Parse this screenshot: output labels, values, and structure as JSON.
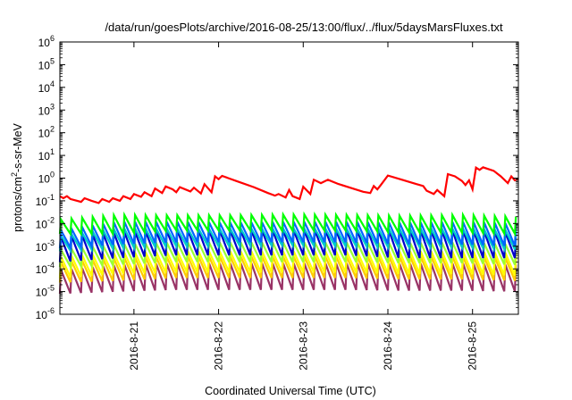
{
  "chart_data": {
    "type": "line",
    "title": "/data/run/goesPlots/archive/2016-08-25/13:00/flux/../flux/5daysMarsFluxes.txt",
    "xlabel": "Coordinated Universal Time (UTC)",
    "ylabel_prefix": "protons/cm",
    "ylabel_sup": "2",
    "ylabel_suffix": "-s-sr-MeV",
    "y_scale": "log",
    "ylim": [
      1e-06,
      1000000
    ],
    "y_ticks": [
      {
        "value": 1e-06,
        "base": "10",
        "exp": "-6"
      },
      {
        "value": 1e-05,
        "base": "10",
        "exp": "-5"
      },
      {
        "value": 0.0001,
        "base": "10",
        "exp": "-4"
      },
      {
        "value": 0.001,
        "base": "10",
        "exp": "-3"
      },
      {
        "value": 0.01,
        "base": "10",
        "exp": "-2"
      },
      {
        "value": 0.1,
        "base": "10",
        "exp": "-1"
      },
      {
        "value": 1,
        "base": "10",
        "exp": "0"
      },
      {
        "value": 10,
        "base": "10",
        "exp": "1"
      },
      {
        "value": 100,
        "base": "10",
        "exp": "2"
      },
      {
        "value": 1000,
        "base": "10",
        "exp": "3"
      },
      {
        "value": 10000,
        "base": "10",
        "exp": "4"
      },
      {
        "value": 100000,
        "base": "10",
        "exp": "5"
      },
      {
        "value": 1000000,
        "base": "10",
        "exp": "6"
      }
    ],
    "xlim": [
      "2016-08-20T03:00",
      "2016-08-25T13:00"
    ],
    "x_ticks": [
      {
        "label": "2016-8-21",
        "value": "2016-08-21T00:00"
      },
      {
        "label": "2016-8-22",
        "value": "2016-08-22T00:00"
      },
      {
        "label": "2016-8-23",
        "value": "2016-08-23T00:00"
      },
      {
        "label": "2016-8-24",
        "value": "2016-08-24T00:00"
      },
      {
        "label": "2016-8-25",
        "value": "2016-08-25T00:00"
      }
    ],
    "grid": false,
    "legend": "none",
    "series_pattern": "sawtooth",
    "series": [
      {
        "color": "#ff0000",
        "points": [
          [
            "2016-08-20T03:00",
            0.16
          ],
          [
            "2016-08-20T04:00",
            0.13
          ],
          [
            "2016-08-20T05:00",
            0.16
          ],
          [
            "2016-08-20T06:00",
            0.12
          ],
          [
            "2016-08-20T09:00",
            0.09
          ],
          [
            "2016-08-20T10:00",
            0.13
          ],
          [
            "2016-08-20T12:00",
            0.1
          ],
          [
            "2016-08-20T14:00",
            0.08
          ],
          [
            "2016-08-20T15:00",
            0.12
          ],
          [
            "2016-08-20T17:00",
            0.09
          ],
          [
            "2016-08-20T18:00",
            0.13
          ],
          [
            "2016-08-20T20:00",
            0.1
          ],
          [
            "2016-08-20T21:00",
            0.16
          ],
          [
            "2016-08-20T23:00",
            0.12
          ],
          [
            "2016-08-21T00:00",
            0.2
          ],
          [
            "2016-08-21T02:00",
            0.15
          ],
          [
            "2016-08-21T03:00",
            0.24
          ],
          [
            "2016-08-21T05:00",
            0.16
          ],
          [
            "2016-08-21T06:00",
            0.35
          ],
          [
            "2016-08-21T08:00",
            0.22
          ],
          [
            "2016-08-21T09:00",
            0.43
          ],
          [
            "2016-08-21T11:00",
            0.32
          ],
          [
            "2016-08-21T12:00",
            0.24
          ],
          [
            "2016-08-21T13:00",
            0.4
          ],
          [
            "2016-08-21T16:00",
            0.26
          ],
          [
            "2016-08-21T17:00",
            0.38
          ],
          [
            "2016-08-21T19:00",
            0.21
          ],
          [
            "2016-08-21T20:00",
            0.54
          ],
          [
            "2016-08-21T22:00",
            0.24
          ],
          [
            "2016-08-21T23:00",
            1.2
          ],
          [
            "2016-08-22T00:00",
            0.9
          ],
          [
            "2016-08-22T01:00",
            1.25
          ],
          [
            "2016-08-22T05:00",
            0.75
          ],
          [
            "2016-08-22T10:00",
            0.4
          ],
          [
            "2016-08-22T14:00",
            0.22
          ],
          [
            "2016-08-22T16:00",
            0.17
          ],
          [
            "2016-08-22T17:00",
            0.2
          ],
          [
            "2016-08-22T19:00",
            0.14
          ],
          [
            "2016-08-22T20:00",
            0.3
          ],
          [
            "2016-08-22T21:00",
            0.16
          ],
          [
            "2016-08-22T23:00",
            0.12
          ],
          [
            "2016-08-23T00:00",
            0.42
          ],
          [
            "2016-08-23T02:00",
            0.2
          ],
          [
            "2016-08-23T03:00",
            0.85
          ],
          [
            "2016-08-23T05:00",
            0.6
          ],
          [
            "2016-08-23T07:00",
            0.85
          ],
          [
            "2016-08-23T10:00",
            0.55
          ],
          [
            "2016-08-23T14:00",
            0.35
          ],
          [
            "2016-08-23T17:00",
            0.25
          ],
          [
            "2016-08-23T19:00",
            0.22
          ],
          [
            "2016-08-23T20:00",
            0.45
          ],
          [
            "2016-08-23T21:00",
            0.32
          ],
          [
            "2016-08-23T22:00",
            0.5
          ],
          [
            "2016-08-24T00:00",
            1.3
          ],
          [
            "2016-08-24T04:00",
            0.85
          ],
          [
            "2016-08-24T08:00",
            0.55
          ],
          [
            "2016-08-24T10:00",
            0.45
          ],
          [
            "2016-08-24T11:00",
            0.28
          ],
          [
            "2016-08-24T13:00",
            0.2
          ],
          [
            "2016-08-24T14:00",
            0.3
          ],
          [
            "2016-08-24T16:00",
            0.16
          ],
          [
            "2016-08-24T17:00",
            1.5
          ],
          [
            "2016-08-24T19:00",
            1.2
          ],
          [
            "2016-08-24T21:00",
            0.75
          ],
          [
            "2016-08-24T22:00",
            0.5
          ],
          [
            "2016-08-24T23:00",
            0.8
          ],
          [
            "2016-08-25T00:00",
            0.32
          ],
          [
            "2016-08-25T01:00",
            2.9
          ],
          [
            "2016-08-25T02:00",
            2.3
          ],
          [
            "2016-08-25T03:00",
            3.0
          ],
          [
            "2016-08-25T06:00",
            2.1
          ],
          [
            "2016-08-25T08:00",
            1.2
          ],
          [
            "2016-08-25T10:00",
            0.6
          ],
          [
            "2016-08-25T11:00",
            1.2
          ],
          [
            "2016-08-25T12:00",
            0.8
          ],
          [
            "2016-08-25T13:00",
            0.9
          ]
        ]
      },
      {
        "color": "#00ff00",
        "base": [
          0.0035,
          0.0035,
          0.005,
          0.005,
          0.0048,
          0.005,
          0.004,
          0.004,
          0.0035
        ],
        "peak": [
          0.015,
          0.024,
          0.023,
          0.023,
          0.025,
          0.024,
          0.022,
          0.024,
          0.02
        ]
      },
      {
        "color": "#0066ff",
        "base": [
          0.0008,
          0.0012,
          0.0015,
          0.0015,
          0.0015,
          0.0015,
          0.0012,
          0.0012,
          0.001
        ],
        "peak": [
          0.005,
          0.012,
          0.012,
          0.011,
          0.012,
          0.012,
          0.011,
          0.012,
          0.01
        ]
      },
      {
        "color": "#00cccc",
        "base": [
          0.0006,
          0.0008,
          0.001,
          0.001,
          0.0011,
          0.001,
          0.0009,
          0.0009,
          0.0007
        ],
        "peak": [
          0.003,
          0.006,
          0.006,
          0.006,
          0.006,
          0.006,
          0.006,
          0.006,
          0.005
        ]
      },
      {
        "color": "#0000cc",
        "base": [
          0.0002,
          0.0003,
          0.0004,
          0.0004,
          0.0004,
          0.0004,
          0.0003,
          0.0003,
          0.0003
        ],
        "peak": [
          0.0025,
          0.004,
          0.005,
          0.005,
          0.005,
          0.005,
          0.005,
          0.005,
          0.004
        ]
      },
      {
        "color": "#99ff33",
        "base": [
          0.00012,
          0.00015,
          0.0002,
          0.0002,
          0.0002,
          0.0002,
          0.00018,
          0.00018,
          0.00015
        ],
        "peak": [
          0.0007,
          0.0012,
          0.0015,
          0.0015,
          0.0015,
          0.0015,
          0.0014,
          0.0015,
          0.0012
        ]
      },
      {
        "color": "#ffff00",
        "base": [
          4e-05,
          6e-05,
          7e-05,
          7e-05,
          7e-05,
          7e-05,
          6e-05,
          6e-05,
          5e-05
        ],
        "peak": [
          0.00035,
          0.0005,
          0.0006,
          0.0006,
          0.0006,
          0.0006,
          0.0006,
          0.0006,
          0.0005
        ]
      },
      {
        "color": "#ffcc00",
        "base": [
          2.5e-05,
          3e-05,
          4e-05,
          4e-05,
          4e-05,
          4e-05,
          3.5e-05,
          3.5e-05,
          3e-05
        ],
        "peak": [
          0.0002,
          0.0003,
          0.00035,
          0.00035,
          0.00035,
          0.00035,
          0.00035,
          0.00035,
          0.0003
        ]
      },
      {
        "color": "#993366",
        "base": [
          8e-06,
          1e-05,
          1.2e-05,
          1.2e-05,
          1.2e-05,
          1.2e-05,
          1.1e-05,
          1.1e-05,
          1e-05
        ],
        "peak": [
          9e-05,
          0.00015,
          0.00018,
          0.00018,
          0.00018,
          0.00018,
          0.00017,
          0.00018,
          0.00015
        ]
      }
    ]
  }
}
